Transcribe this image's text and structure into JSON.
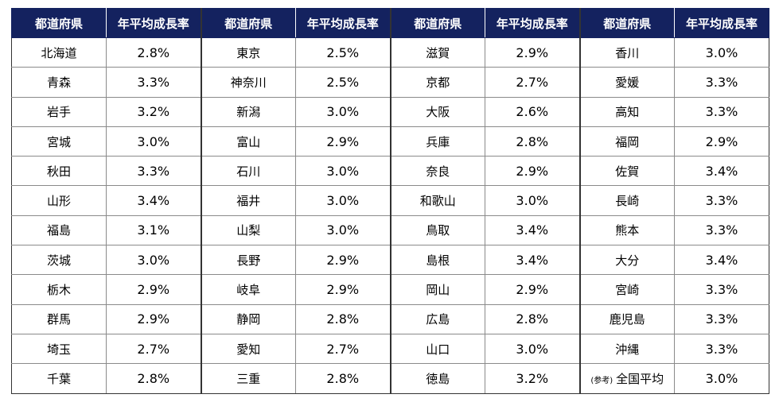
{
  "headers": {
    "prefecture": "都道府県",
    "rate": "年平均成長率"
  },
  "groups": [
    {
      "rows": [
        {
          "pref": "北海道",
          "rate": "2.8%"
        },
        {
          "pref": "青森",
          "rate": "3.3%"
        },
        {
          "pref": "岩手",
          "rate": "3.2%"
        },
        {
          "pref": "宮城",
          "rate": "3.0%"
        },
        {
          "pref": "秋田",
          "rate": "3.3%"
        },
        {
          "pref": "山形",
          "rate": "3.4%"
        },
        {
          "pref": "福島",
          "rate": "3.1%"
        },
        {
          "pref": "茨城",
          "rate": "3.0%"
        },
        {
          "pref": "栃木",
          "rate": "2.9%"
        },
        {
          "pref": "群馬",
          "rate": "2.9%"
        },
        {
          "pref": "埼玉",
          "rate": "2.7%"
        },
        {
          "pref": "千葉",
          "rate": "2.8%"
        }
      ]
    },
    {
      "rows": [
        {
          "pref": "東京",
          "rate": "2.5%"
        },
        {
          "pref": "神奈川",
          "rate": "2.5%"
        },
        {
          "pref": "新潟",
          "rate": "3.0%"
        },
        {
          "pref": "富山",
          "rate": "2.9%"
        },
        {
          "pref": "石川",
          "rate": "3.0%"
        },
        {
          "pref": "福井",
          "rate": "3.0%"
        },
        {
          "pref": "山梨",
          "rate": "3.0%"
        },
        {
          "pref": "長野",
          "rate": "2.9%"
        },
        {
          "pref": "岐阜",
          "rate": "2.9%"
        },
        {
          "pref": "静岡",
          "rate": "2.8%"
        },
        {
          "pref": "愛知",
          "rate": "2.7%"
        },
        {
          "pref": "三重",
          "rate": "2.8%"
        }
      ]
    },
    {
      "rows": [
        {
          "pref": "滋賀",
          "rate": "2.9%"
        },
        {
          "pref": "京都",
          "rate": "2.7%"
        },
        {
          "pref": "大阪",
          "rate": "2.6%"
        },
        {
          "pref": "兵庫",
          "rate": "2.8%"
        },
        {
          "pref": "奈良",
          "rate": "2.9%"
        },
        {
          "pref": "和歌山",
          "rate": "3.0%"
        },
        {
          "pref": "鳥取",
          "rate": "3.4%"
        },
        {
          "pref": "島根",
          "rate": "3.4%"
        },
        {
          "pref": "岡山",
          "rate": "2.9%"
        },
        {
          "pref": "広島",
          "rate": "2.8%"
        },
        {
          "pref": "山口",
          "rate": "3.0%"
        },
        {
          "pref": "徳島",
          "rate": "3.2%"
        }
      ]
    },
    {
      "rows": [
        {
          "pref": "香川",
          "rate": "3.0%"
        },
        {
          "pref": "愛媛",
          "rate": "3.3%"
        },
        {
          "pref": "高知",
          "rate": "3.3%"
        },
        {
          "pref": "福岡",
          "rate": "2.9%"
        },
        {
          "pref": "佐賀",
          "rate": "3.4%"
        },
        {
          "pref": "長崎",
          "rate": "3.3%"
        },
        {
          "pref": "熊本",
          "rate": "3.3%"
        },
        {
          "pref": "大分",
          "rate": "3.4%"
        },
        {
          "pref": "宮崎",
          "rate": "3.3%"
        },
        {
          "pref": "鹿児島",
          "rate": "3.3%"
        },
        {
          "pref": "沖縄",
          "rate": "3.3%"
        },
        {
          "note": "(参考)",
          "pref": "全国平均",
          "rate": "3.0%"
        }
      ]
    }
  ]
}
